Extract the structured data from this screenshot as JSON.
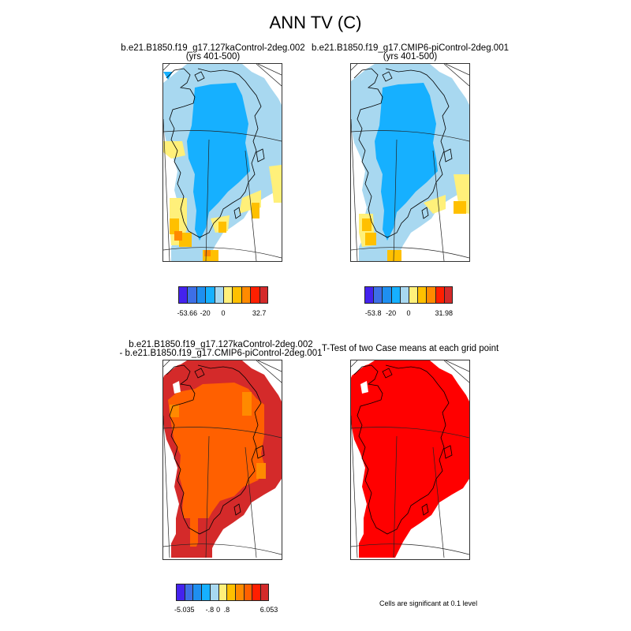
{
  "title": "ANN TV (C)",
  "panels": [
    {
      "title_line1": "b.e21.B1850.f19_g17.127kaControl-2deg.002",
      "title_line2": "(yrs 401-500)"
    },
    {
      "title_line1": "b.e21.B1850.f19_g17.CMIP6-piControl-2deg.001",
      "title_line2": "(yrs 401-500)"
    },
    {
      "title_line1": "b.e21.B1850.f19_g17.127kaControl-2deg.002",
      "title_line2": "- b.e21.B1850.f19_g17.CMIP6-piControl-2deg.001"
    },
    {
      "title_line1": "T-Test of two Case means at each grid point"
    }
  ],
  "colorbars": {
    "case1": {
      "colors": [
        "#4422ee",
        "#3d6fe6",
        "#1e8ff0",
        "#16b0ff",
        "#a8d8f0",
        "#fff07a",
        "#ffc000",
        "#ff8a00",
        "#ff1f00",
        "#d42a2a"
      ],
      "labels": [
        "-53.66",
        "-20",
        "0",
        "32.7"
      ],
      "label_bins": [
        1,
        3,
        5,
        9
      ]
    },
    "case2": {
      "colors": [
        "#4422ee",
        "#3d6fe6",
        "#1e8ff0",
        "#16b0ff",
        "#a8d8f0",
        "#fff07a",
        "#ffc000",
        "#ff8a00",
        "#ff1f00",
        "#d42a2a"
      ],
      "labels": [
        "-53.8",
        "-20",
        "0",
        "31.98"
      ],
      "label_bins": [
        1,
        3,
        5,
        9
      ]
    },
    "diff": {
      "colors": [
        "#4422ee",
        "#3d6fe6",
        "#1e8ff0",
        "#16b0ff",
        "#a8d8f0",
        "#fff07a",
        "#ffc000",
        "#ff8a00",
        "#ff6000",
        "#ff1f00",
        "#d42a2a"
      ],
      "labels": [
        "-5.035",
        "-.8",
        "0",
        ".8",
        "6.053"
      ],
      "label_bins": [
        1,
        4,
        5,
        6,
        11
      ]
    }
  },
  "significance_note": "Cells are significant at 0.1 level",
  "map_colors": {
    "light_blue": "#a8d8f0",
    "blue": "#16b0ff",
    "yellow": "#fff07a",
    "orange": "#ffc000",
    "dark_orange": "#ff8a00",
    "orange_red": "#ff6000",
    "red": "#ff1f00",
    "dark_red": "#d42a2a",
    "pure_red": "#ff0000",
    "coastline": "#000000"
  }
}
